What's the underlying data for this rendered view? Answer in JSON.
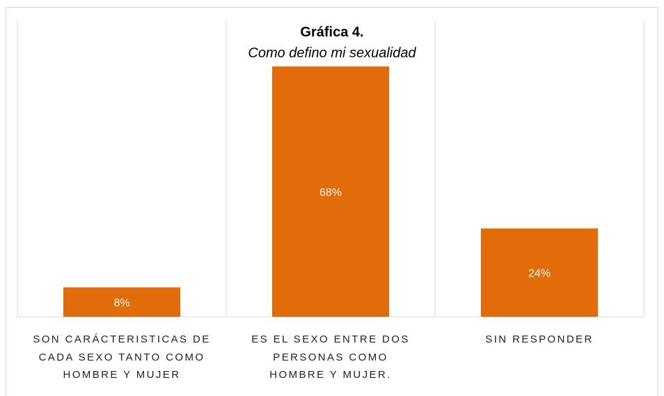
{
  "chart_data": {
    "type": "bar",
    "title": "Gráfica 4.",
    "subtitle": "Como defino mi sexualidad",
    "categories": [
      "SON CARÁCTERISTICAS DE\nCADA SEXO TANTO COMO\nHOMBRE Y MUJER",
      "ES EL SEXO ENTRE DOS\nPERSONAS COMO\nHOMBRE Y MUJER.",
      "SIN RESPONDER"
    ],
    "values": [
      8,
      68,
      24
    ],
    "value_labels": [
      "8%",
      "68%",
      "24%"
    ],
    "color": "#e36c0a"
  }
}
